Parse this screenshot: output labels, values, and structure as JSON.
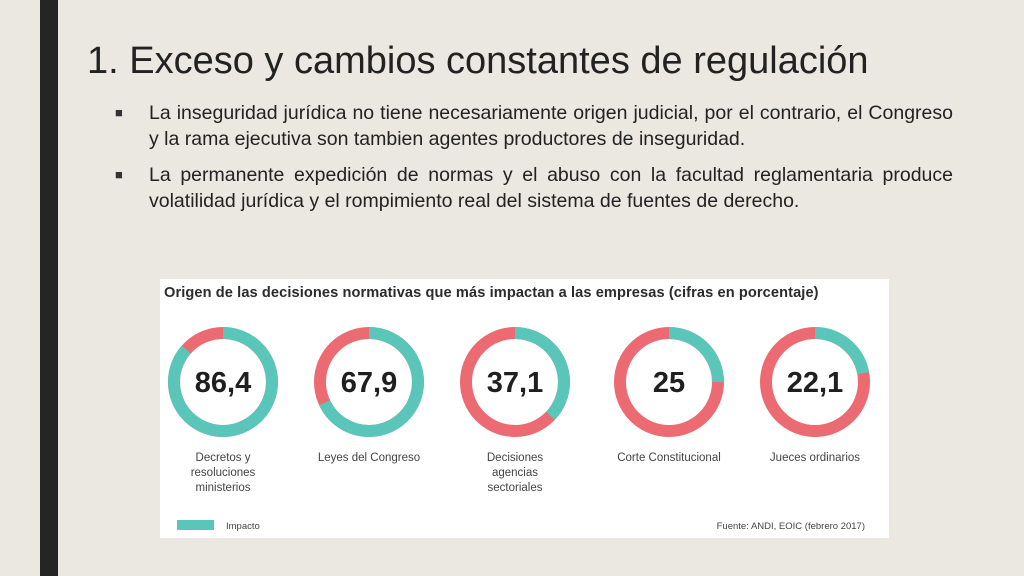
{
  "slide": {
    "title": "1. Exceso y cambios constantes de regulación",
    "bullets": [
      {
        "marker": "■",
        "text": "La inseguridad jurídica no tiene necesariamente origen judicial, por el contrario, el Congreso y la rama ejecutiva son tambien agentes productores de inseguridad."
      },
      {
        "marker": "■",
        "text": "La permanente expedición de normas y el abuso con la facultad reglamentaria produce volatilidad jurídica y el rompimiento real del sistema de fuentes de derecho."
      }
    ]
  },
  "infographic": {
    "title": "Origen de las decisiones normativas que más impactan a las empresas (cifras en porcentaje)",
    "legend_label": "Impacto",
    "source": "Fuente: ANDI, EOIC (febrero 2017)",
    "colors": {
      "impact": "#5ac5b9",
      "remainder": "#ec6a72"
    }
  },
  "chart_data": {
    "type": "pie",
    "title": "Origen de las decisiones normativas que más impactan a las empresas (cifras en porcentaje)",
    "legend": [
      "Impacto"
    ],
    "categories": [
      "Decretos y resoluciones ministerios",
      "Leyes del Congreso",
      "Decisiones agencias sectoriales",
      "Corte Constitucional",
      "Jueces ordinarios"
    ],
    "values": [
      86.4,
      67.9,
      37.1,
      25,
      22.1
    ],
    "value_labels": [
      "86,4",
      "67,9",
      "37,1",
      "25",
      "22,1"
    ],
    "label_lines": [
      [
        "Decretos y",
        "resoluciones",
        "ministerios"
      ],
      [
        "Leyes del Congreso"
      ],
      [
        "Decisiones",
        "agencias",
        "sectoriales"
      ],
      [
        "Corte Constitucional"
      ],
      [
        "Jueces ordinarios"
      ]
    ]
  }
}
